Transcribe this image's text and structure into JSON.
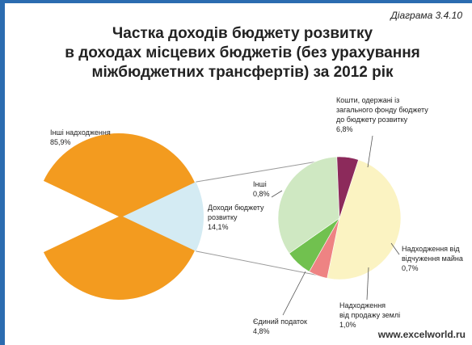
{
  "header": {
    "diagram_number": "Діаграма 3.4.10",
    "title_lines": [
      "Частка доходів бюджету розвитку",
      "в доходах місцевих бюджетів (без урахування",
      "міжбюджетних трансфертів) за 2012 рік"
    ]
  },
  "colors": {
    "frame": "#2b6cb0",
    "orange": "#f39b1f",
    "light_blue": "#d4ebf3",
    "pale_yellow": "#fbf3c2",
    "maroon": "#8c2a5b",
    "salmon": "#ee8383",
    "green": "#71c14f",
    "light_green": "#cfe8c2",
    "connector": "#9a9a9a"
  },
  "watermark": "www.excelworld.ru",
  "chart_data": [
    {
      "type": "pie",
      "title": "",
      "slices": [
        {
          "label": "Інші надходження",
          "value_text": "85,9%",
          "value": 85.9,
          "color": "#f39b1f"
        },
        {
          "label": "Доходи бюджету розвитку",
          "value_text": "14,1%",
          "value": 14.1,
          "color": "#d4ebf3"
        }
      ],
      "label_lines": {
        "other_income": [
          "Інші надходження",
          "85,9%"
        ],
        "dev_budget": [
          "Доходи бюджету",
          "розвитку",
          "14,1%"
        ]
      }
    },
    {
      "type": "pie",
      "title": "",
      "slices": [
        {
          "label": "Кошти, одержані із загального фонду бюджету до бюджету розвитку",
          "value_text": "6,8%",
          "value": 6.8,
          "color": "#fbf3c2"
        },
        {
          "label": "Надходження від відчуження майна",
          "value_text": "0,7%",
          "value": 0.7,
          "color": "#ee8383"
        },
        {
          "label": "Надходження від продажу землі",
          "value_text": "1,0%",
          "value": 1.0,
          "color": "#71c14f"
        },
        {
          "label": "Єдиний податок",
          "value_text": "4,8%",
          "value": 4.8,
          "color": "#cfe8c2"
        },
        {
          "label": "Інші",
          "value_text": "0,8%",
          "value": 0.8,
          "color": "#8c2a5b"
        }
      ],
      "label_lines": {
        "general_fund": [
          "Кошти, одержані із",
          "загального фонду бюджету",
          "до бюджету розвитку",
          "6,8%"
        ],
        "property": [
          "Надходження від",
          "відчуження майна",
          "0,7%"
        ],
        "land": [
          "Надходження",
          "від продажу землі",
          "1,0%"
        ],
        "single_tax": [
          "Єдиний податок",
          "4,8%"
        ],
        "other": [
          "Інші",
          "0,8%"
        ]
      }
    }
  ]
}
